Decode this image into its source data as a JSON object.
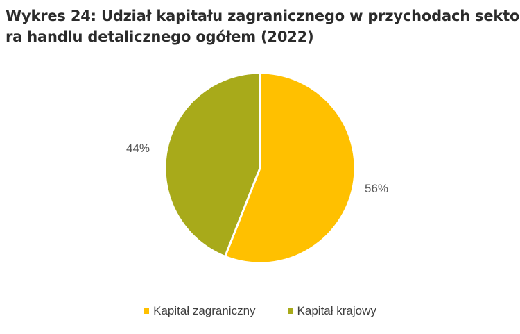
{
  "title": {
    "line1": "Wykres 24: Udział kapitału zagranicznego w przychodach sekto-",
    "line2": "ra handlu detalicznego ogółem (2022)"
  },
  "chart_data": {
    "type": "pie",
    "title": "Wykres 24: Udział kapitału zagranicznego w przychodach sektora handlu detalicznego ogółem (2022)",
    "categories": [
      "Kapitał zagraniczny",
      "Kapitał krajowy"
    ],
    "values": [
      56,
      44
    ],
    "labels": [
      "56%",
      "44%"
    ],
    "colors": [
      "#FFC000",
      "#A8AA1A"
    ],
    "legend": "bottom"
  }
}
